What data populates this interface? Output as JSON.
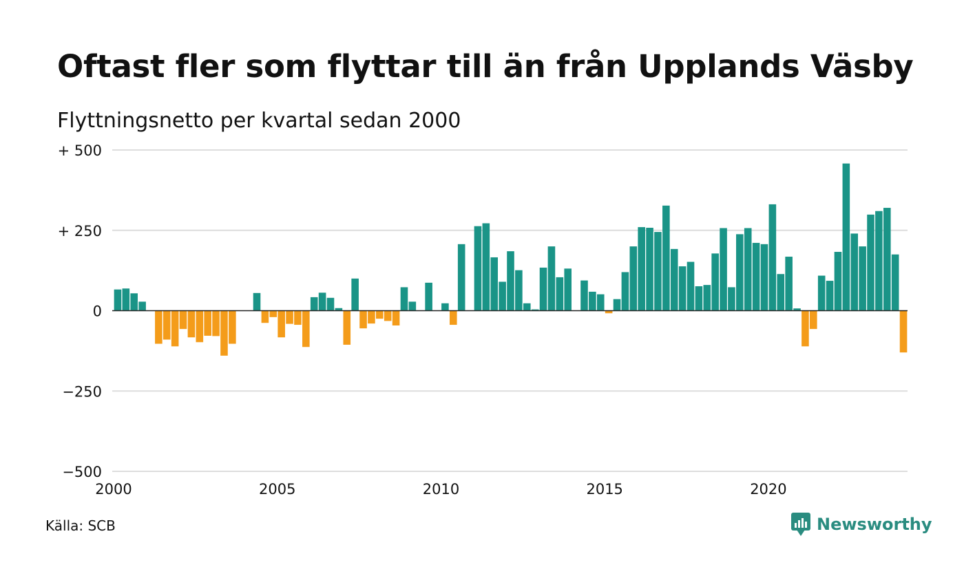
{
  "title": "Oftast fler som flyttar till än från Upplands Väsby",
  "subtitle": "Flyttningsnetto per kvartal sedan 2000",
  "source": "Källa: SCB",
  "brand": {
    "name": "Newsworthy",
    "icon": "newsworthy-logo-icon",
    "color": "#2a8c80"
  },
  "colors": {
    "positive": "#1a9487",
    "negative": "#f49c1a",
    "grid": "#dddddd",
    "zero_line": "#222222"
  },
  "chart_data": {
    "type": "bar",
    "title": "Oftast fler som flyttar till än från Upplands Väsby",
    "subtitle": "Flyttningsnetto per kvartal sedan 2000",
    "xlabel": "",
    "ylabel": "",
    "ylim": [
      -500,
      500
    ],
    "grid": true,
    "legend": "none",
    "y_ticks": [
      {
        "value": 500,
        "label": "+ 500"
      },
      {
        "value": 250,
        "label": "+ 250"
      },
      {
        "value": 0,
        "label": "0"
      },
      {
        "value": -250,
        "label": "−250"
      },
      {
        "value": -500,
        "label": "−500"
      }
    ],
    "x_ticks": [
      {
        "value": "2000",
        "label": "2000"
      },
      {
        "value": "2005",
        "label": "2005"
      },
      {
        "value": "2010",
        "label": "2010"
      },
      {
        "value": "2015",
        "label": "2015"
      },
      {
        "value": "2020",
        "label": "2020"
      }
    ],
    "x_range": [
      "2000-Q1",
      "2024-Q1"
    ],
    "categories": [
      "2000-Q1",
      "2000-Q2",
      "2000-Q3",
      "2000-Q4",
      "2001-Q1",
      "2001-Q2",
      "2001-Q3",
      "2001-Q4",
      "2002-Q1",
      "2002-Q2",
      "2002-Q3",
      "2002-Q4",
      "2003-Q1",
      "2003-Q2",
      "2003-Q3",
      "2003-Q4",
      "2004-Q1",
      "2004-Q2",
      "2004-Q3",
      "2004-Q4",
      "2005-Q1",
      "2005-Q2",
      "2005-Q3",
      "2005-Q4",
      "2006-Q1",
      "2006-Q2",
      "2006-Q3",
      "2006-Q4",
      "2007-Q1",
      "2007-Q2",
      "2007-Q3",
      "2007-Q4",
      "2008-Q1",
      "2008-Q2",
      "2008-Q3",
      "2008-Q4",
      "2009-Q1",
      "2009-Q2",
      "2009-Q3",
      "2009-Q4",
      "2010-Q1",
      "2010-Q2",
      "2010-Q3",
      "2010-Q4",
      "2011-Q1",
      "2011-Q2",
      "2011-Q3",
      "2011-Q4",
      "2012-Q1",
      "2012-Q2",
      "2012-Q3",
      "2012-Q4",
      "2013-Q1",
      "2013-Q2",
      "2013-Q3",
      "2013-Q4",
      "2014-Q1",
      "2014-Q2",
      "2014-Q3",
      "2014-Q4",
      "2015-Q1",
      "2015-Q2",
      "2015-Q3",
      "2015-Q4",
      "2016-Q1",
      "2016-Q2",
      "2016-Q3",
      "2016-Q4",
      "2017-Q1",
      "2017-Q2",
      "2017-Q3",
      "2017-Q4",
      "2018-Q1",
      "2018-Q2",
      "2018-Q3",
      "2018-Q4",
      "2019-Q1",
      "2019-Q2",
      "2019-Q3",
      "2019-Q4",
      "2020-Q1",
      "2020-Q2",
      "2020-Q3",
      "2020-Q4",
      "2021-Q1",
      "2021-Q2",
      "2021-Q3",
      "2021-Q4",
      "2022-Q1",
      "2022-Q2",
      "2022-Q3",
      "2022-Q4",
      "2023-Q1",
      "2023-Q2",
      "2023-Q3",
      "2023-Q4",
      "2024-Q1"
    ],
    "values": [
      66,
      69,
      54,
      28,
      0,
      -103,
      -90,
      -111,
      -57,
      -83,
      -98,
      -78,
      -79,
      -140,
      -103,
      0,
      0,
      55,
      -38,
      -20,
      -83,
      -41,
      -44,
      -113,
      42,
      56,
      40,
      8,
      -106,
      100,
      -55,
      -40,
      -25,
      -32,
      -46,
      73,
      28,
      0,
      87,
      0,
      23,
      -44,
      207,
      0,
      263,
      272,
      166,
      90,
      185,
      126,
      23,
      4,
      134,
      200,
      104,
      131,
      0,
      94,
      59,
      51,
      -8,
      36,
      120,
      200,
      260,
      258,
      245,
      327,
      192,
      138,
      152,
      76,
      80,
      178,
      257,
      73,
      238,
      257,
      211,
      207,
      331,
      114,
      168,
      7,
      -111,
      -57,
      109,
      93,
      183,
      458,
      240,
      200,
      299,
      310,
      320,
      175,
      -130
    ]
  }
}
